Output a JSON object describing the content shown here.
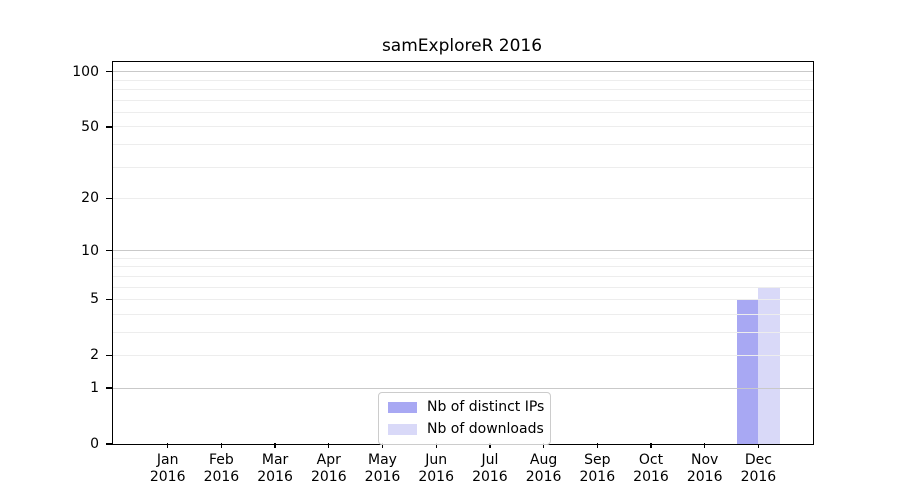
{
  "chart_data": {
    "type": "bar",
    "title": "samExploreR 2016",
    "categories": [
      "Jan",
      "Feb",
      "Mar",
      "Apr",
      "May",
      "Jun",
      "Jul",
      "Aug",
      "Sep",
      "Oct",
      "Nov",
      "Dec"
    ],
    "x_tick_sublabel": "2016",
    "series": [
      {
        "name": "Nb of distinct IPs",
        "color": "#a8a8f3",
        "values": [
          0,
          0,
          0,
          0,
          0,
          0,
          0,
          0,
          0,
          0,
          0,
          5
        ]
      },
      {
        "name": "Nb of downloads",
        "color": "#d9d9f8",
        "values": [
          0,
          0,
          0,
          0,
          0,
          0,
          0,
          0,
          0,
          0,
          0,
          6
        ]
      }
    ],
    "y_axis": {
      "scale": "log10(value+1)",
      "tick_labels": [
        100,
        50,
        20,
        10,
        5,
        2,
        1,
        0
      ],
      "major_grid_values": [
        1,
        10,
        100
      ],
      "minor_grid_values": [
        2,
        3,
        4,
        5,
        6,
        7,
        8,
        9,
        20,
        30,
        40,
        50,
        60,
        70,
        80,
        90
      ],
      "top_value": 113,
      "bottom_value": 0
    },
    "legend": {
      "position": "lower center",
      "entries": [
        "Nb of distinct IPs",
        "Nb of downloads"
      ]
    },
    "grid": "horizontal major and minor",
    "colors": {
      "major_grid": "#c9c9c9",
      "minor_grid": "#ededed",
      "spine": "#000000",
      "text": "#000000",
      "background": "#ffffff"
    }
  }
}
